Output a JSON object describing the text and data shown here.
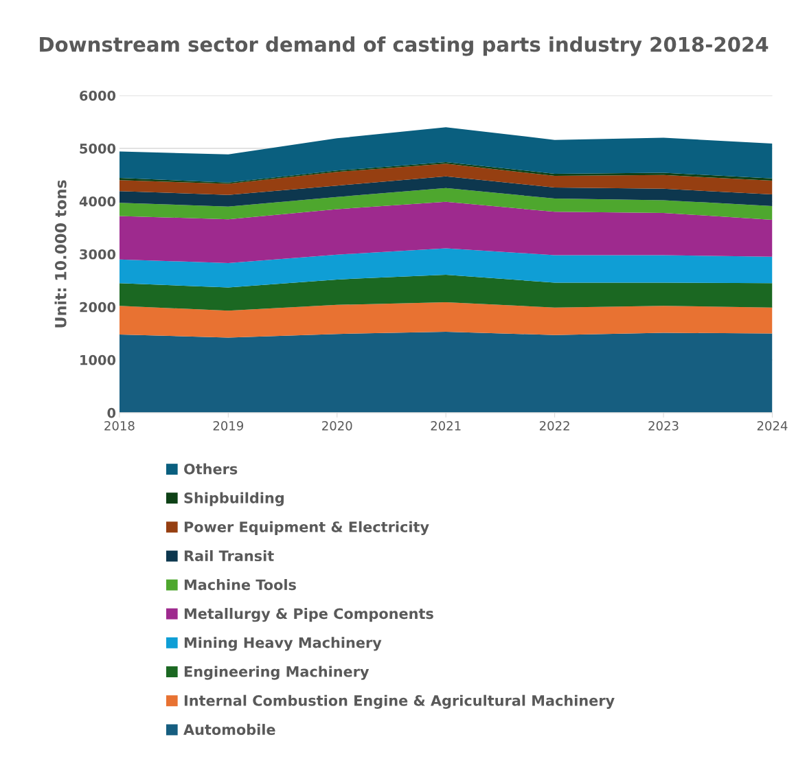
{
  "chart_data": {
    "type": "area",
    "stacked": true,
    "title": "Downstream sector demand of casting parts industry 2018-2024",
    "ylabel": "Unit: 10.000 tons",
    "x": [
      2018,
      2019,
      2020,
      2021,
      2022,
      2023,
      2024
    ],
    "xlim": [
      2018,
      2024
    ],
    "xticks": [
      2018,
      2019,
      2020,
      2021,
      2022,
      2023,
      2024
    ],
    "ylim": [
      0,
      6000
    ],
    "yticks": [
      0,
      1000,
      2000,
      3000,
      4000,
      5000,
      6000
    ],
    "grid": "y",
    "legend": "bottom",
    "series": [
      {
        "name": "Automobile",
        "color": "#165e80",
        "values": [
          1480,
          1420,
          1490,
          1530,
          1470,
          1510,
          1500
        ]
      },
      {
        "name": "Internal Combustion Engine & Agricultural Machinery",
        "color": "#e87232",
        "values": [
          540,
          510,
          550,
          560,
          520,
          510,
          490
        ]
      },
      {
        "name": "Engineering Machinery",
        "color": "#1b6822",
        "values": [
          430,
          440,
          480,
          520,
          470,
          440,
          460
        ]
      },
      {
        "name": "Mining Heavy Machinery",
        "color": "#0f9ed5",
        "values": [
          450,
          460,
          470,
          500,
          520,
          520,
          500
        ]
      },
      {
        "name": "Metallurgy & Pipe Components",
        "color": "#9e2a8e",
        "values": [
          820,
          830,
          860,
          880,
          820,
          800,
          700
        ]
      },
      {
        "name": "Machine Tools",
        "color": "#4ea72e",
        "values": [
          250,
          240,
          230,
          260,
          250,
          240,
          260
        ]
      },
      {
        "name": "Rail Transit",
        "color": "#0d374e",
        "values": [
          220,
          220,
          215,
          220,
          210,
          215,
          220
        ]
      },
      {
        "name": "Power Equipment & Electricity",
        "color": "#963f11",
        "values": [
          210,
          210,
          260,
          240,
          220,
          260,
          260
        ]
      },
      {
        "name": "Shipbuilding",
        "color": "#0e4116",
        "values": [
          40,
          25,
          25,
          30,
          40,
          45,
          40
        ]
      },
      {
        "name": "Others",
        "color": "#0a5f7f",
        "values": [
          500,
          530,
          610,
          660,
          640,
          660,
          660
        ]
      }
    ]
  }
}
